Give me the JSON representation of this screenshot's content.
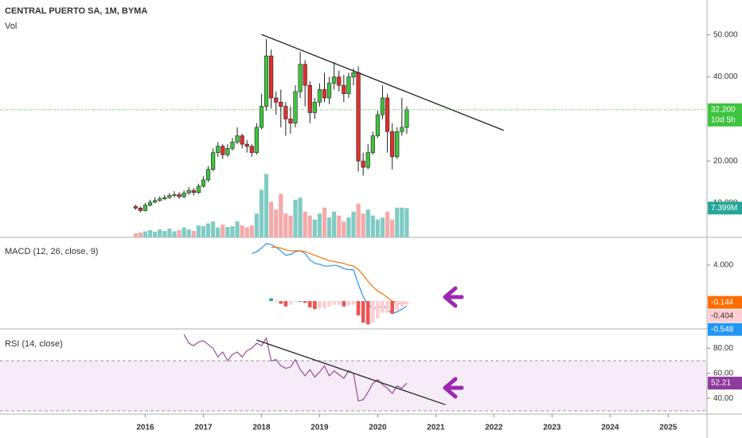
{
  "chart_data": [
    {
      "type": "candlestick",
      "title": "CENTRAL PUERTO SA, 1M, BYMA",
      "x": [
        "2015-11",
        "2015-12",
        "2016-01",
        "2016-02",
        "2016-03",
        "2016-04",
        "2016-05",
        "2016-06",
        "2016-07",
        "2016-08",
        "2016-09",
        "2016-10",
        "2016-11",
        "2016-12",
        "2017-01",
        "2017-02",
        "2017-03",
        "2017-04",
        "2017-05",
        "2017-06",
        "2017-07",
        "2017-08",
        "2017-09",
        "2017-10",
        "2017-11",
        "2017-12",
        "2018-01",
        "2018-02",
        "2018-03",
        "2018-04",
        "2018-05",
        "2018-06",
        "2018-07",
        "2018-08",
        "2018-09",
        "2018-10",
        "2018-11",
        "2018-12",
        "2019-01",
        "2019-02",
        "2019-03",
        "2019-04",
        "2019-05",
        "2019-06",
        "2019-07",
        "2019-08",
        "2019-09",
        "2019-10",
        "2019-11",
        "2019-12",
        "2020-01",
        "2020-02",
        "2020-03",
        "2020-04",
        "2020-05",
        "2020-06",
        "2020-07"
      ],
      "open": [
        9.2,
        8.8,
        8.2,
        9.5,
        10.2,
        10.6,
        11.0,
        11.3,
        11.8,
        12.0,
        11.5,
        12.4,
        13.0,
        12.5,
        14.0,
        15.5,
        18.0,
        22.0,
        23.5,
        21.5,
        23.0,
        24.5,
        26.0,
        24.0,
        23.5,
        22.0,
        28.0,
        33.0,
        45.0,
        35.0,
        34.0,
        33.0,
        30.0,
        29.0,
        36.5,
        43.0,
        38.0,
        31.5,
        34.0,
        37.0,
        35.0,
        38.5,
        40.0,
        38.0,
        36.0,
        40.0,
        41.0,
        20.0,
        18.5,
        22.0,
        26.0,
        31.0,
        35.0,
        27.0,
        21.0,
        27.0,
        28.0
      ],
      "high": [
        9.6,
        9.2,
        10.0,
        10.8,
        11.4,
        11.6,
        12.0,
        12.4,
        12.8,
        12.6,
        13.0,
        13.8,
        13.6,
        14.6,
        16.4,
        18.8,
        23.0,
        24.5,
        24.0,
        24.0,
        25.5,
        28.0,
        26.5,
        25.0,
        24.0,
        29.0,
        36.0,
        49.0,
        46.5,
        36.5,
        37.0,
        34.0,
        33.0,
        38.0,
        46.0,
        44.0,
        39.0,
        35.0,
        38.5,
        41.0,
        40.0,
        43.5,
        41.5,
        40.5,
        41.0,
        42.0,
        42.5,
        22.0,
        24.0,
        27.0,
        32.0,
        38.0,
        36.0,
        29.0,
        28.0,
        35.0,
        33.0
      ],
      "low": [
        8.4,
        7.8,
        8.0,
        9.2,
        10.0,
        10.3,
        10.7,
        11.0,
        11.4,
        11.0,
        11.2,
        12.0,
        11.8,
        12.2,
        13.6,
        15.0,
        17.5,
        21.0,
        20.5,
        21.0,
        22.5,
        24.0,
        23.0,
        22.0,
        21.0,
        21.5,
        27.5,
        32.0,
        32.5,
        31.0,
        28.0,
        26.0,
        26.5,
        28.0,
        35.0,
        33.0,
        29.0,
        30.0,
        33.0,
        34.0,
        33.5,
        37.0,
        36.5,
        34.0,
        35.0,
        38.0,
        17.5,
        16.5,
        18.0,
        21.5,
        25.5,
        30.0,
        22.0,
        18.0,
        20.5,
        26.0,
        26.5
      ],
      "close": [
        8.8,
        8.2,
        9.5,
        10.2,
        10.6,
        11.0,
        11.3,
        11.8,
        12.0,
        11.5,
        12.4,
        13.0,
        12.5,
        14.0,
        15.5,
        18.0,
        22.0,
        23.5,
        21.5,
        23.0,
        24.5,
        26.0,
        24.0,
        23.5,
        22.0,
        28.0,
        33.0,
        45.0,
        35.0,
        34.0,
        33.0,
        30.0,
        29.0,
        36.5,
        43.0,
        38.0,
        31.5,
        34.0,
        37.0,
        35.0,
        38.5,
        40.0,
        38.0,
        36.0,
        40.0,
        41.0,
        20.0,
        18.5,
        22.0,
        26.0,
        31.0,
        35.0,
        27.0,
        21.0,
        27.0,
        28.0,
        32.2
      ],
      "last_close_label": "32.200",
      "countdown": "10d 5h",
      "up_color": "#3ec43e",
      "down_color": "#e0302c",
      "volume": {
        "name": "Vol",
        "values": [
          1.0,
          1.2,
          1.5,
          1.8,
          1.4,
          2.0,
          1.6,
          2.2,
          1.5,
          1.8,
          2.5,
          2.0,
          1.6,
          3.0,
          2.8,
          3.5,
          4.0,
          2.5,
          3.2,
          2.6,
          2.8,
          4.0,
          3.0,
          2.5,
          3.0,
          6.0,
          12.0,
          16.0,
          9.0,
          7.0,
          11.0,
          6.0,
          5.5,
          9.5,
          10.0,
          6.5,
          5.5,
          4.5,
          6.0,
          7.5,
          5.0,
          6.5,
          5.5,
          4.0,
          5.0,
          6.5,
          8.5,
          6.0,
          7.0,
          5.5,
          4.5,
          5.0,
          6.5,
          4.5,
          7.5,
          7.5,
          7.399
        ],
        "last_label": "7.399M",
        "vlim": [
          0,
          60
        ],
        "up_color": "#80cbc4",
        "down_color": "#f5a9a9"
      },
      "ylim": [
        1.85,
        58.3
      ],
      "yticks": [
        {
          "value": 50,
          "label": "50.000"
        },
        {
          "value": 40,
          "label": "40.000"
        },
        {
          "value": 20,
          "label": "20.000"
        },
        {
          "value": 10,
          "label": "10.000"
        }
      ],
      "xlim": [
        "2013-07",
        "2025-09"
      ],
      "xticks": [
        2016,
        2017,
        2018,
        2019,
        2020,
        2021,
        2022,
        2023,
        2024,
        2025
      ],
      "trendlines": [
        {
          "x": [
            "2018-01",
            "2022-03"
          ],
          "values": [
            50.1,
            27.3
          ]
        }
      ]
    },
    {
      "type": "macd",
      "title": "MACD (12, 26, close, 9)",
      "series": [
        {
          "color": "#2196f3",
          "values": [
            null,
            null,
            null,
            null,
            null,
            null,
            null,
            null,
            null,
            null,
            null,
            null,
            null,
            null,
            null,
            null,
            null,
            null,
            null,
            null,
            null,
            null,
            null,
            null,
            5.3,
            5.5,
            5.9,
            6.4,
            6.3,
            6.0,
            5.6,
            5.1,
            5.2,
            5.5,
            5.6,
            5.3,
            4.6,
            4.2,
            4.1,
            3.9,
            3.9,
            4.0,
            3.9,
            3.6,
            3.5,
            3.5,
            1.9,
            0.5,
            -0.4,
            -0.8,
            -0.8,
            -0.5,
            -0.9,
            -1.4,
            -1.2,
            -0.9,
            -0.548
          ]
        },
        {
          "color": "#ff6d00",
          "values": [
            null,
            null,
            null,
            null,
            null,
            null,
            null,
            null,
            null,
            null,
            null,
            null,
            null,
            null,
            null,
            null,
            null,
            null,
            null,
            null,
            null,
            null,
            null,
            null,
            null,
            null,
            null,
            null,
            6.0,
            6.0,
            5.9,
            5.7,
            5.6,
            5.6,
            5.6,
            5.5,
            5.3,
            5.1,
            4.9,
            4.7,
            4.5,
            4.4,
            4.3,
            4.2,
            4.0,
            3.9,
            3.5,
            2.9,
            2.2,
            1.6,
            1.1,
            0.8,
            0.4,
            0.0,
            -0.2,
            -0.3,
            -0.144
          ]
        },
        {
          "type": "histogram",
          "colors": [
            "#26a69a",
            "#b2dfdb",
            "#ffcdd2",
            "#ef5350"
          ],
          "values": [
            null,
            null,
            null,
            null,
            null,
            null,
            null,
            null,
            null,
            null,
            null,
            null,
            null,
            null,
            null,
            null,
            null,
            null,
            null,
            null,
            null,
            null,
            null,
            null,
            null,
            null,
            null,
            null,
            0.3,
            0.0,
            -0.3,
            -0.6,
            -0.4,
            -0.1,
            0.0,
            -0.2,
            -0.7,
            -0.9,
            -0.8,
            -0.8,
            -0.6,
            -0.4,
            -0.4,
            -0.6,
            -0.5,
            -0.4,
            -1.6,
            -2.4,
            -2.6,
            -2.4,
            -1.9,
            -1.3,
            -1.3,
            -1.4,
            -1.0,
            -0.6,
            -0.404
          ]
        }
      ],
      "ylim": [
        -3.1,
        7.1
      ],
      "yticks": [
        {
          "value": 4,
          "label": "4.000"
        }
      ]
    },
    {
      "type": "rsi",
      "title": "RSI (14, close)",
      "color": "#9c4a9c",
      "values": [
        null,
        null,
        null,
        null,
        null,
        null,
        null,
        null,
        null,
        null,
        91,
        84,
        82,
        85,
        86,
        83,
        80,
        73,
        77,
        70,
        75,
        77,
        73,
        78,
        80,
        84,
        82,
        88,
        70,
        71,
        66,
        64,
        65,
        71,
        63,
        58,
        63,
        57,
        61,
        66,
        58,
        62,
        59,
        56,
        62,
        60,
        38,
        39,
        45,
        52,
        55,
        51,
        48,
        44,
        50,
        48,
        52.21
      ],
      "band": [
        30,
        70
      ],
      "band_color": "#9c27b0",
      "ylim": [
        27.5,
        95.4
      ],
      "yticks": [
        {
          "value": 80,
          "label": "80.00"
        },
        {
          "value": 60,
          "label": "60.00"
        },
        {
          "value": 40,
          "label": "40.00"
        }
      ],
      "trendlines": [
        {
          "x": [
            "2017-12",
            "2021-03"
          ],
          "values": [
            86.5,
            35
          ]
        }
      ]
    }
  ]
}
